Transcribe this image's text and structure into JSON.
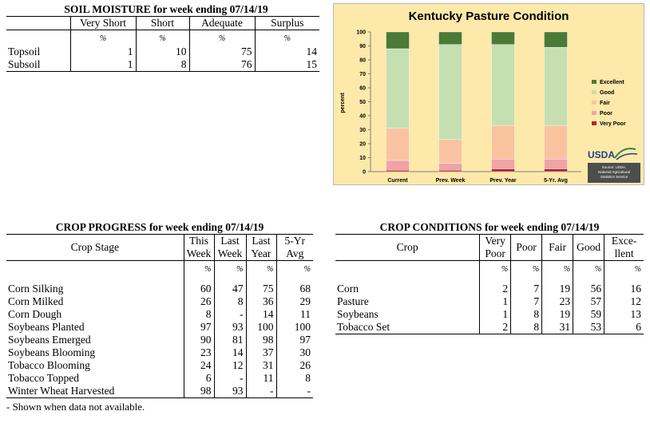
{
  "soil_moisture": {
    "title": "SOIL MOISTURE for week ending 07/14/19",
    "columns": [
      "Very Short",
      "Short",
      "Adequate",
      "Surplus"
    ],
    "unit": "%",
    "rows": [
      {
        "label": "Topsoil",
        "values": [
          "1",
          "10",
          "75",
          "14"
        ]
      },
      {
        "label": "Subsoil",
        "values": [
          "1",
          "8",
          "76",
          "15"
        ]
      }
    ]
  },
  "chart_data": {
    "type": "bar",
    "stacked": true,
    "title": "Kentucky Pasture Condition",
    "ylabel": "percent",
    "ylim": [
      0,
      100
    ],
    "yticks": [
      "0",
      "10",
      "20",
      "30",
      "40",
      "50",
      "60",
      "70",
      "80",
      "90",
      "100"
    ],
    "categories": [
      "Current",
      "Prev. Week",
      "Prev. Year",
      "5-Yr. Avg"
    ],
    "series": [
      {
        "name": "Very Poor",
        "color": "#b2232b",
        "values": [
          1,
          1,
          2,
          2
        ]
      },
      {
        "name": "Poor",
        "color": "#f0a3a6",
        "values": [
          7,
          5,
          7,
          7
        ]
      },
      {
        "name": "Fair",
        "color": "#f9c3a0",
        "values": [
          23,
          17,
          24,
          24
        ]
      },
      {
        "name": "Good",
        "color": "#c5dfb0",
        "values": [
          57,
          68,
          58,
          56
        ]
      },
      {
        "name": "Excellent",
        "color": "#4a7a35",
        "values": [
          12,
          9,
          9,
          11
        ]
      }
    ],
    "legend_order": [
      "Excellent",
      "Good",
      "Fair",
      "Poor",
      "Very Poor"
    ],
    "legend_position": "right",
    "grid": false,
    "logo_text": "USDA",
    "source_lines": [
      "Source: USDA,",
      "National Agricultural",
      "Statistics Service"
    ]
  },
  "crop_progress": {
    "title": "CROP PROGRESS for week ending 07/14/19",
    "stage_header": "Crop Stage",
    "columns": [
      [
        "This",
        "Week"
      ],
      [
        "Last",
        "Week"
      ],
      [
        "Last",
        "Year"
      ],
      [
        "5-Yr",
        "Avg"
      ]
    ],
    "unit": "%",
    "rows": [
      {
        "label": "Corn Silking",
        "values": [
          "60",
          "47",
          "75",
          "68"
        ]
      },
      {
        "label": "Corn Milked",
        "values": [
          "26",
          "8",
          "36",
          "29"
        ]
      },
      {
        "label": "Corn Dough",
        "values": [
          "8",
          "-",
          "14",
          "11"
        ]
      },
      {
        "label": "Soybeans Planted",
        "values": [
          "97",
          "93",
          "100",
          "100"
        ]
      },
      {
        "label": "Soybeans Emerged",
        "values": [
          "90",
          "81",
          "98",
          "97"
        ]
      },
      {
        "label": "Soybeans Blooming",
        "values": [
          "23",
          "14",
          "37",
          "30"
        ]
      },
      {
        "label": "Tobacco Blooming",
        "values": [
          "24",
          "12",
          "31",
          "26"
        ]
      },
      {
        "label": "Tobacco Topped",
        "values": [
          "6",
          "-",
          "11",
          "8"
        ]
      },
      {
        "label": "Winter Wheat Harvested",
        "values": [
          "98",
          "93",
          "-",
          "-"
        ]
      }
    ],
    "footnote": "- Shown when data not available."
  },
  "crop_conditions": {
    "title": "CROP CONDITIONS for week ending 07/14/19",
    "crop_header": "Crop",
    "columns": [
      [
        "Very",
        "Poor"
      ],
      [
        "Poor"
      ],
      [
        "Fair"
      ],
      [
        "Good"
      ],
      [
        "Exce-",
        "llent"
      ]
    ],
    "unit": "%",
    "rows": [
      {
        "label": "Corn",
        "values": [
          "2",
          "7",
          "19",
          "56",
          "16"
        ]
      },
      {
        "label": "Pasture",
        "values": [
          "1",
          "7",
          "23",
          "57",
          "12"
        ]
      },
      {
        "label": "Soybeans",
        "values": [
          "1",
          "8",
          "19",
          "59",
          "13"
        ]
      },
      {
        "label": "Tobacco Set",
        "values": [
          "2",
          "8",
          "31",
          "53",
          "6"
        ]
      }
    ]
  }
}
